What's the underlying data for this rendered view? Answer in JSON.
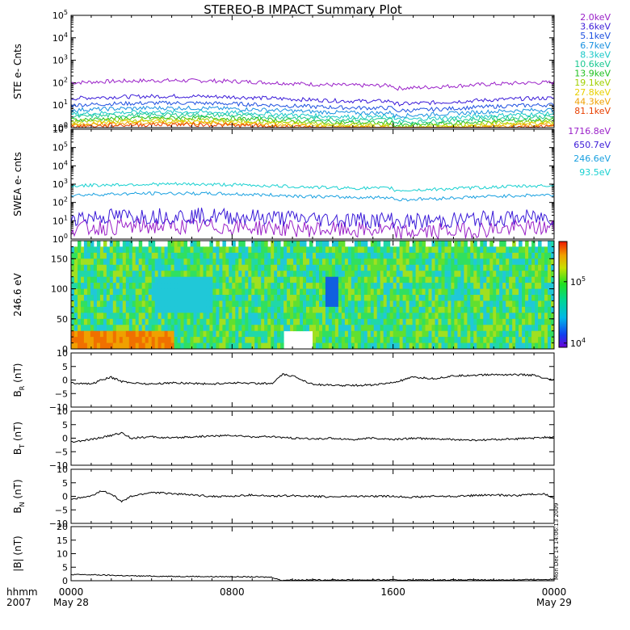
{
  "title": "STEREO-B IMPACT Summary Plot",
  "stamp": "Mon Dec 14 14:06:13 2009",
  "time_axis": {
    "corner_label": "hhmm",
    "year": "2007",
    "ticks": [
      {
        "hour": 0,
        "label": "0000",
        "date": "May 28"
      },
      {
        "hour": 8,
        "label": "0800",
        "date": ""
      },
      {
        "hour": 16,
        "label": "1600",
        "date": ""
      },
      {
        "hour": 24,
        "label": "0000",
        "date": "May 29"
      }
    ]
  },
  "colorbar": {
    "ticks": [
      {
        "mantissa": "10",
        "exp": "5",
        "frac": 0.62
      },
      {
        "mantissa": "10",
        "exp": "4",
        "frac": 0.04
      }
    ]
  },
  "chart_data": [
    {
      "panel": "ste",
      "type": "line",
      "ylabel": "STE e- Cnts",
      "yscale": "log",
      "ylim": [
        1,
        100000
      ],
      "y_ticks": [
        {
          "mantissa": "10",
          "exp": "0"
        },
        {
          "mantissa": "10",
          "exp": "1"
        },
        {
          "mantissa": "10",
          "exp": "2"
        },
        {
          "mantissa": "10",
          "exp": "3"
        },
        {
          "mantissa": "10",
          "exp": "4"
        },
        {
          "mantissa": "10",
          "exp": "5"
        }
      ],
      "series": [
        {
          "name": "2.0keV",
          "color": "#9a20c8",
          "level": 100
        },
        {
          "name": "3.6keV",
          "color": "#3a1ad8",
          "level": 20
        },
        {
          "name": "5.1keV",
          "color": "#1e50e0",
          "level": 10
        },
        {
          "name": "6.7keV",
          "color": "#1890e0",
          "level": 6
        },
        {
          "name": "8.3keV",
          "color": "#18c8c8",
          "level": 4
        },
        {
          "name": "10.6keV",
          "color": "#18c890",
          "level": 3
        },
        {
          "name": "13.9keV",
          "color": "#20c020",
          "level": 2.2
        },
        {
          "name": "19.1keV",
          "color": "#a0d000",
          "level": 1.8
        },
        {
          "name": "27.8keV",
          "color": "#e8d000",
          "level": 1.5
        },
        {
          "name": "44.3keV",
          "color": "#f0a000",
          "level": 1.3
        },
        {
          "name": "81.1keV",
          "color": "#e84000",
          "level": 1.1
        }
      ]
    },
    {
      "panel": "swea",
      "type": "line",
      "ylabel": "SWEA e- cnts",
      "yscale": "log",
      "ylim": [
        1,
        1000000
      ],
      "y_ticks": [
        {
          "mantissa": "10",
          "exp": "0"
        },
        {
          "mantissa": "10",
          "exp": "1"
        },
        {
          "mantissa": "10",
          "exp": "2"
        },
        {
          "mantissa": "10",
          "exp": "3"
        },
        {
          "mantissa": "10",
          "exp": "4"
        },
        {
          "mantissa": "10",
          "exp": "5"
        },
        {
          "mantissa": "10",
          "exp": "6"
        }
      ],
      "series": [
        {
          "name": "1716.8eV",
          "color": "#9a20c8",
          "level": 4
        },
        {
          "name": "650.7eV",
          "color": "#3a1ad8",
          "level": 15
        },
        {
          "name": "246.6eV",
          "color": "#18a0e0",
          "level": 250
        },
        {
          "name": "93.5eV",
          "color": "#18d0d0",
          "level": 800
        }
      ]
    },
    {
      "panel": "pad",
      "type": "heatmap",
      "ylabel": "246.6 eV",
      "ylim": [
        0,
        180
      ],
      "y_ticks": [
        {
          "v": 0,
          "label": "0"
        },
        {
          "v": 50,
          "label": "50"
        },
        {
          "v": 100,
          "label": "100"
        },
        {
          "v": 150,
          "label": "150"
        }
      ]
    },
    {
      "panel": "br",
      "type": "line",
      "ylabel": "B",
      "ylabel_sub": "R",
      "ylabel_unit": "(nT)",
      "ylim": [
        -10,
        10
      ],
      "y_ticks": [
        {
          "v": -10,
          "label": "−10"
        },
        {
          "v": -5,
          "label": "−5"
        },
        {
          "v": 0,
          "label": "0"
        },
        {
          "v": 5,
          "label": "5"
        },
        {
          "v": 10,
          "label": "10"
        }
      ],
      "x_hours": [
        0,
        1,
        1.5,
        2,
        2.5,
        3,
        4,
        5,
        6,
        7,
        8,
        9,
        10,
        10.5,
        11,
        12,
        13,
        14,
        15,
        16,
        17,
        18,
        19,
        20,
        21,
        22,
        23,
        23.5,
        24
      ],
      "values": [
        -1,
        -1.5,
        0,
        1,
        -0.5,
        -1,
        -1.5,
        -1,
        -1.2,
        -1.5,
        -1,
        -1.2,
        -1.3,
        2,
        1.5,
        -1.5,
        -2,
        -2,
        -1.8,
        -1,
        1,
        0.5,
        1.5,
        1.8,
        2,
        2,
        1.8,
        0.5,
        0
      ]
    },
    {
      "panel": "bt",
      "type": "line",
      "ylabel": "B",
      "ylabel_sub": "T",
      "ylabel_unit": "(nT)",
      "ylim": [
        -10,
        10
      ],
      "y_ticks": [
        {
          "v": -10,
          "label": "−10"
        },
        {
          "v": -5,
          "label": "−5"
        },
        {
          "v": 0,
          "label": "0"
        },
        {
          "v": 5,
          "label": "5"
        },
        {
          "v": 10,
          "label": "10"
        }
      ],
      "x_hours": [
        0,
        1,
        2,
        2.5,
        3,
        4,
        5,
        6,
        7,
        8,
        9,
        10,
        11,
        12,
        13,
        14,
        15,
        16,
        17,
        18,
        19,
        20,
        21,
        22,
        23,
        24
      ],
      "values": [
        -1.5,
        -0.5,
        1,
        2,
        0,
        0.5,
        0,
        0.5,
        0.8,
        1,
        0.5,
        0.5,
        0,
        -0.3,
        0,
        -0.5,
        0,
        -0.5,
        0,
        -0.3,
        -0.5,
        -0.8,
        -0.5,
        -0.3,
        0,
        0.5
      ]
    },
    {
      "panel": "bn",
      "type": "line",
      "ylabel": "B",
      "ylabel_sub": "N",
      "ylabel_unit": "(nT)",
      "ylim": [
        -10,
        10
      ],
      "y_ticks": [
        {
          "v": -10,
          "label": "−10"
        },
        {
          "v": -5,
          "label": "−5"
        },
        {
          "v": 0,
          "label": "0"
        },
        {
          "v": 5,
          "label": "5"
        },
        {
          "v": 10,
          "label": "10"
        }
      ],
      "x_hours": [
        0,
        1,
        1.5,
        2,
        2.5,
        3,
        4,
        5,
        6,
        7,
        8,
        9,
        10,
        11,
        12,
        13,
        14,
        15,
        16,
        17,
        18,
        19,
        20,
        21,
        22,
        23,
        23.5,
        24
      ],
      "values": [
        -1,
        0,
        2,
        1,
        -2,
        0,
        1.5,
        1,
        0.5,
        0,
        0,
        0.5,
        0,
        0.3,
        0,
        -0.2,
        0,
        0,
        0,
        -0.3,
        0,
        0,
        0.3,
        0.5,
        0.3,
        0.8,
        1,
        -1
      ]
    },
    {
      "panel": "bmag",
      "type": "line",
      "ylabel": "|B| (nT)",
      "ylim": [
        0,
        20
      ],
      "y_ticks": [
        {
          "v": 0,
          "label": "0"
        },
        {
          "v": 5,
          "label": "5"
        },
        {
          "v": 10,
          "label": "10"
        },
        {
          "v": 15,
          "label": "15"
        },
        {
          "v": 20,
          "label": "20"
        }
      ],
      "x_hours": [
        0,
        1,
        2,
        3,
        4,
        5,
        6,
        7,
        8,
        9,
        10,
        10.4,
        11,
        12,
        13,
        14,
        15,
        16,
        17,
        18,
        19,
        20,
        21,
        22,
        23,
        24
      ],
      "values": [
        2.3,
        2.2,
        2,
        1.8,
        1.7,
        1.6,
        1.6,
        1.5,
        1.5,
        1.4,
        1.3,
        0.2,
        0.3,
        0.3,
        0.3,
        0.3,
        0.3,
        0.3,
        0.3,
        0.3,
        0.3,
        0.3,
        0.3,
        0.3,
        0.4,
        0.5
      ]
    }
  ]
}
